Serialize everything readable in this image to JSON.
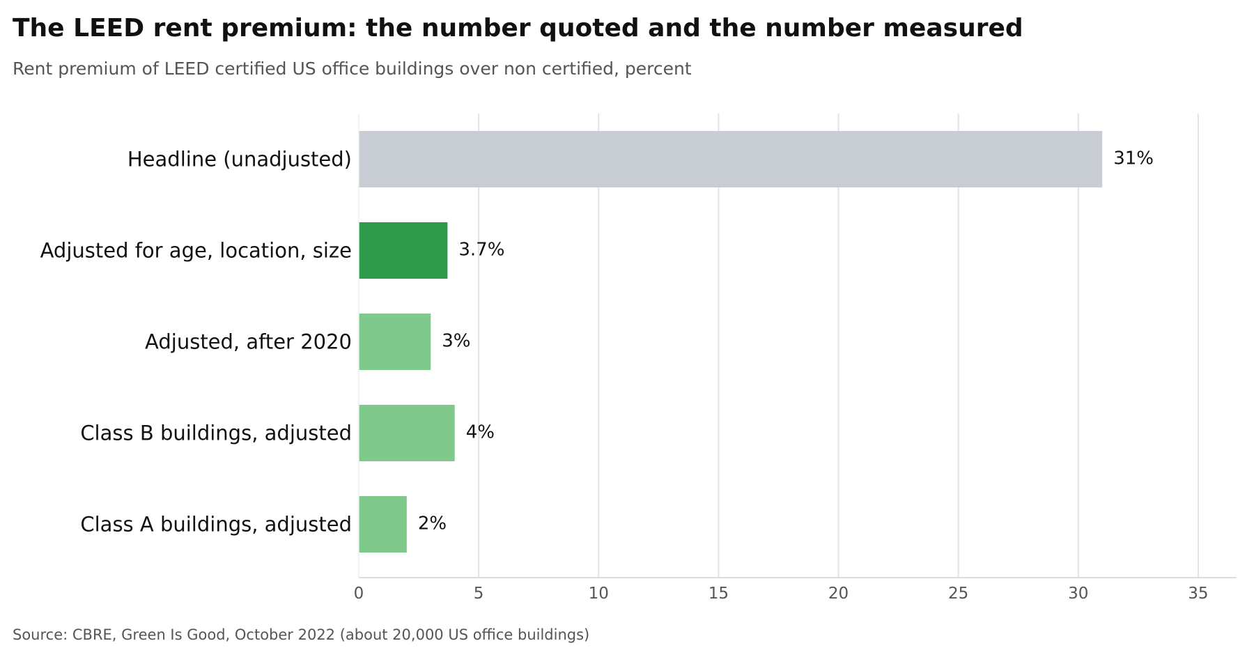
{
  "chart_data": {
    "type": "bar",
    "orientation": "horizontal",
    "title": "The LEED rent premium: the number quoted and the number measured",
    "subtitle": "Rent premium of LEED certified US office buildings over non certified, percent",
    "source": "Source: CBRE, Green Is Good, October 2022 (about 20,000 US office buildings)",
    "categories": [
      "Headline (unadjusted)",
      "Adjusted for age, location, size",
      "Adjusted, after 2020",
      "Class B buildings, adjusted",
      "Class A buildings, adjusted"
    ],
    "values": [
      31,
      3.7,
      3,
      4,
      2
    ],
    "data_labels": [
      "31%",
      "3.7%",
      "3%",
      "4%",
      "2%"
    ],
    "bar_colors": [
      "#c8cdd4",
      "#2e9b4b",
      "#80c98c",
      "#80c98c",
      "#80c98c"
    ],
    "xlim": [
      0,
      36.6
    ],
    "xticks": [
      0,
      5,
      10,
      15,
      20,
      25,
      30,
      35
    ],
    "xlabel": "",
    "ylabel": "",
    "grid": "vertical",
    "legend": "none"
  }
}
